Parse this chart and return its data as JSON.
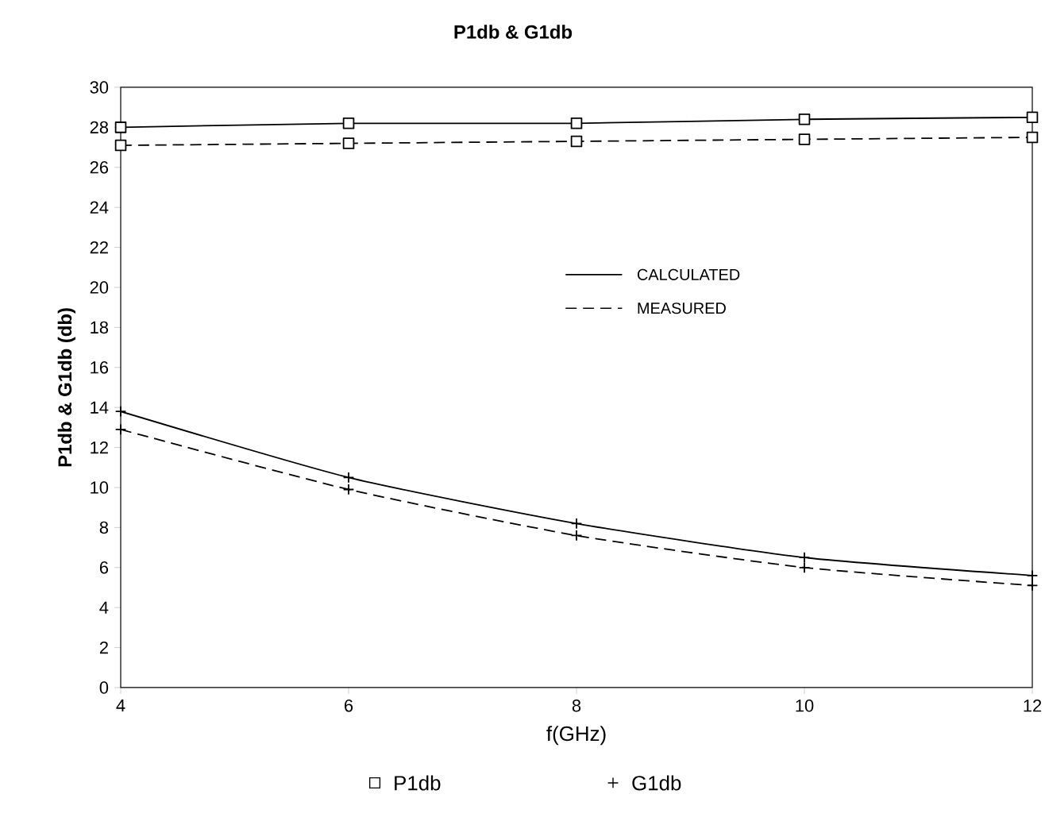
{
  "chart_data": {
    "type": "line",
    "title": "P1db & G1db",
    "xlabel": "f(GHz)",
    "ylabel": "P1db & G1db (db)",
    "x": [
      4,
      6,
      8,
      10,
      12
    ],
    "series": [
      {
        "color": "#000000",
        "line_style": "solid",
        "marker": "square",
        "values": [
          28.0,
          28.2,
          28.2,
          28.4,
          28.5
        ]
      },
      {
        "color": "#000000",
        "line_style": "dashed",
        "marker": "square",
        "values": [
          27.1,
          27.2,
          27.3,
          27.4,
          27.5
        ]
      },
      {
        "color": "#000000",
        "line_style": "solid",
        "marker": "cross",
        "values": [
          13.8,
          10.5,
          8.2,
          6.5,
          5.6
        ]
      },
      {
        "color": "#000000",
        "line_style": "dashed",
        "marker": "cross",
        "values": [
          12.9,
          9.9,
          7.6,
          6.0,
          5.1
        ]
      }
    ],
    "xlim": [
      4,
      12
    ],
    "ylim": [
      0,
      30
    ],
    "xticks": [
      4,
      6,
      8,
      10,
      12
    ],
    "yticks": [
      0,
      2,
      4,
      6,
      8,
      10,
      12,
      14,
      16,
      18,
      20,
      22,
      24,
      26,
      28,
      30
    ],
    "grid": false,
    "annotations": [
      "CALCULATED",
      "MEASURED",
      "P1db",
      "G1db"
    ]
  }
}
